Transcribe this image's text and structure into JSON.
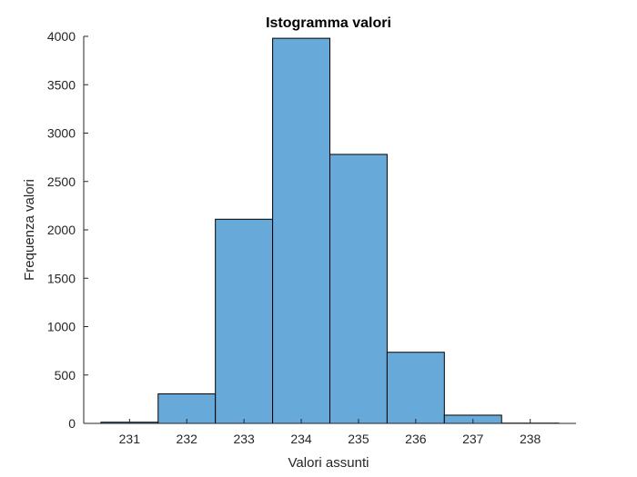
{
  "chart_data": {
    "type": "bar",
    "title": "Istogramma valori",
    "xlabel": "Valori assunti",
    "ylabel": "Frequenza valori",
    "bin_edges": [
      230.5,
      231.5,
      232.5,
      233.5,
      234.5,
      235.5,
      236.5,
      237.5,
      238.5
    ],
    "values": [
      12,
      305,
      2110,
      3980,
      2780,
      735,
      85,
      3
    ],
    "xlim": [
      230.2,
      238.8
    ],
    "ylim": [
      0,
      4000
    ],
    "xticks": [
      231,
      232,
      233,
      234,
      235,
      236,
      237,
      238
    ],
    "xtick_labels": [
      "231",
      "232",
      "233",
      "234",
      "235",
      "236",
      "237",
      "238"
    ],
    "yticks": [
      0,
      500,
      1000,
      1500,
      2000,
      2500,
      3000,
      3500,
      4000
    ],
    "ytick_labels": [
      "0",
      "500",
      "1000",
      "1500",
      "2000",
      "2500",
      "3000",
      "3500",
      "4000"
    ],
    "bar_color": "#67a9d8",
    "edge_color": "#000000",
    "axis_color": "#262626",
    "grid": false,
    "box": false
  }
}
